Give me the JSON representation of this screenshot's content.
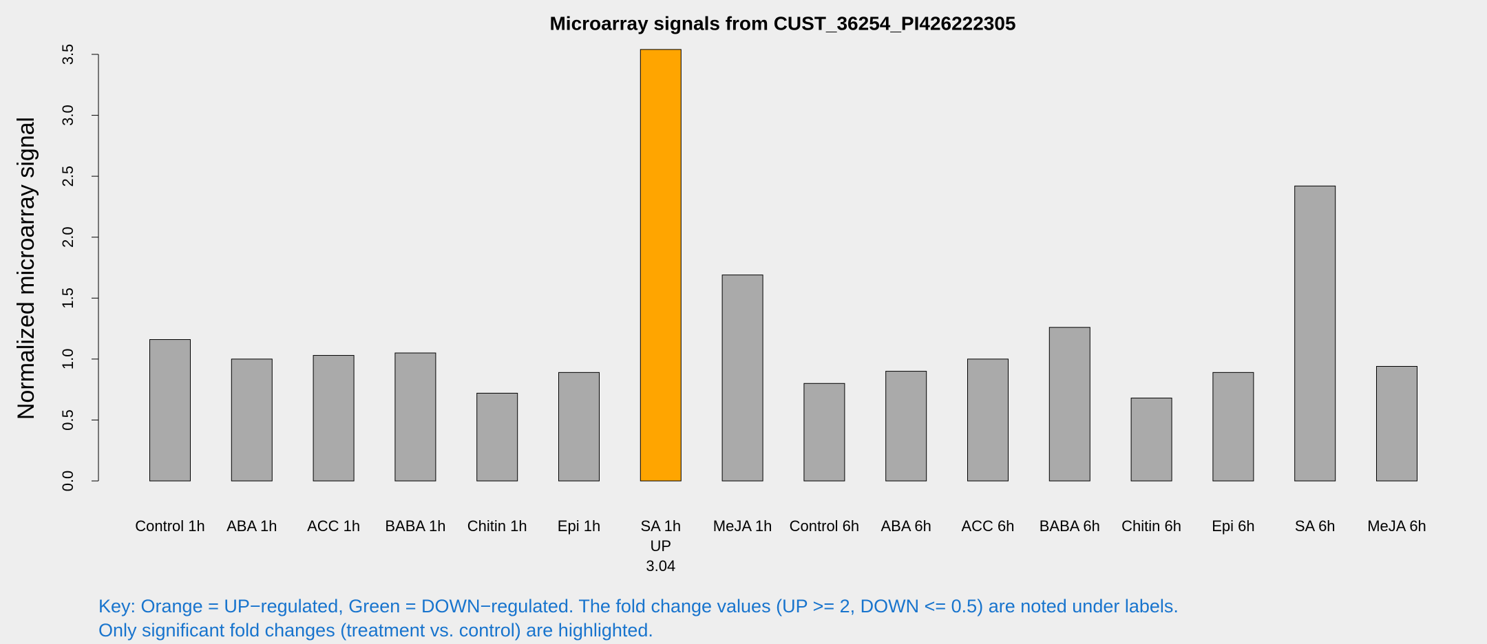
{
  "chart_data": {
    "type": "bar",
    "title": "Microarray signals from CUST_36254_PI426222305",
    "y_label": "Normalized microarray signal",
    "categories": [
      "Control 1h",
      "ABA 1h",
      "ACC 1h",
      "BABA 1h",
      "Chitin 1h",
      "Epi 1h",
      "SA 1h",
      "MeJA 1h",
      "Control 6h",
      "ABA 6h",
      "ACC 6h",
      "BABA 6h",
      "Chitin 6h",
      "Epi 6h",
      "SA 6h",
      "MeJA 6h"
    ],
    "values": [
      1.16,
      1.0,
      1.03,
      1.05,
      0.72,
      0.89,
      3.54,
      1.69,
      0.8,
      0.9,
      1.0,
      1.26,
      0.68,
      0.89,
      2.42,
      0.94
    ],
    "colors": [
      "#aaaaaa",
      "#aaaaaa",
      "#aaaaaa",
      "#aaaaaa",
      "#aaaaaa",
      "#aaaaaa",
      "#ffa500",
      "#aaaaaa",
      "#aaaaaa",
      "#aaaaaa",
      "#aaaaaa",
      "#aaaaaa",
      "#aaaaaa",
      "#aaaaaa",
      "#aaaaaa",
      "#aaaaaa"
    ],
    "regulation": [
      null,
      null,
      null,
      null,
      null,
      null,
      "UP",
      null,
      null,
      null,
      null,
      null,
      null,
      null,
      null,
      null
    ],
    "fold_change": [
      null,
      null,
      null,
      null,
      null,
      null,
      3.04,
      null,
      null,
      null,
      null,
      null,
      null,
      null,
      null,
      null
    ],
    "ylim": [
      0,
      3.5
    ],
    "yticks": [
      {
        "value": 0,
        "label": "0.0"
      },
      0.5,
      {
        "value": 1,
        "label": "1.0"
      },
      1.5,
      {
        "value": 2,
        "label": "2.0"
      },
      2.5,
      {
        "value": 3,
        "label": "3.0"
      },
      3.5
    ],
    "key": [
      "Key: Orange = UP−regulated, Green = DOWN−regulated. The fold change values (UP >= 2, DOWN <= 0.5) are noted under labels.",
      "Only significant fold changes (treatment vs. control) are highlighted."
    ]
  }
}
